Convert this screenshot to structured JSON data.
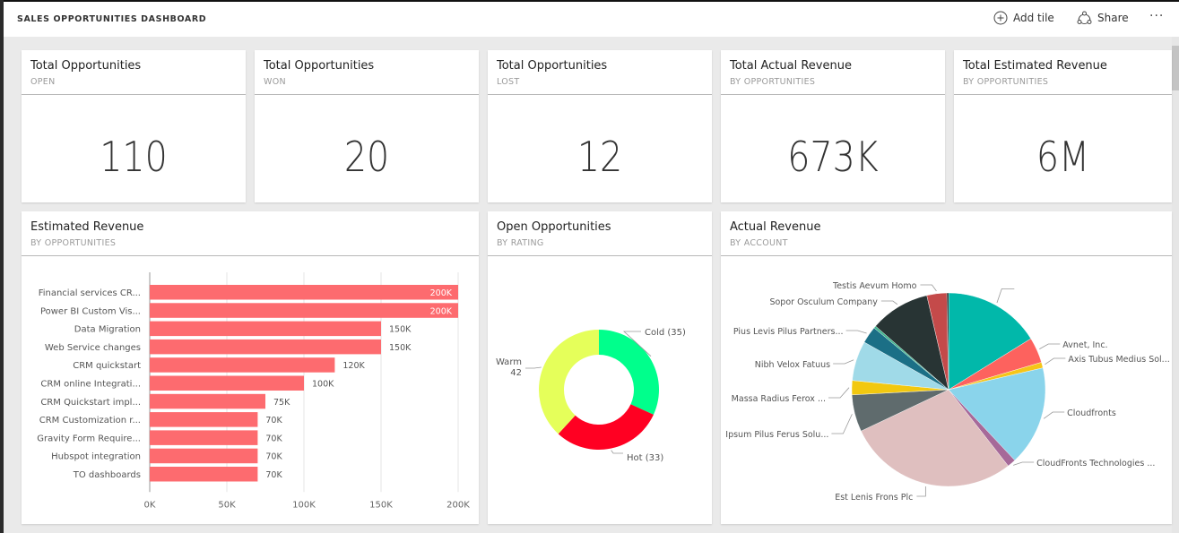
{
  "header": {
    "title": "SALES OPPORTUNITIES DASHBOARD",
    "add_tile_label": "Add tile",
    "share_label": "Share",
    "more_label": "···"
  },
  "kpis": [
    {
      "title": "Total Opportunities",
      "subtitle": "OPEN",
      "value": "110"
    },
    {
      "title": "Total Opportunities",
      "subtitle": "WON",
      "value": "20"
    },
    {
      "title": "Total Opportunities",
      "subtitle": "LOST",
      "value": "12"
    },
    {
      "title": "Total Actual Revenue",
      "subtitle": "BY OPPORTUNITIES",
      "value": "673K"
    },
    {
      "title": "Total Estimated Revenue",
      "subtitle": "BY OPPORTUNITIES",
      "value": "6M"
    }
  ],
  "tiles": {
    "bar": {
      "title": "Estimated Revenue",
      "subtitle": "BY OPPORTUNITIES"
    },
    "donut": {
      "title": "Open Opportunities",
      "subtitle": "BY RATING"
    },
    "pie": {
      "title": "Actual Revenue",
      "subtitle": "BY ACCOUNT"
    }
  },
  "chart_data": [
    {
      "type": "bar",
      "orientation": "horizontal",
      "title": "Estimated Revenue",
      "subtitle": "BY OPPORTUNITIES",
      "color": "#fd6b6f",
      "categories": [
        "Financial services CR...",
        "Power BI Custom Vis...",
        "Data Migration",
        "Web Service changes",
        "CRM quickstart",
        "CRM online Integrati...",
        "CRM Quickstart impl...",
        "CRM Customization r...",
        "Gravity Form Require...",
        "Hubspot integration",
        "TO dashboards"
      ],
      "values": [
        200000,
        200000,
        150000,
        150000,
        120000,
        100000,
        75000,
        70000,
        70000,
        70000,
        70000
      ],
      "data_labels": [
        "200K",
        "200K",
        "150K",
        "150K",
        "120K",
        "100K",
        "75K",
        "70K",
        "70K",
        "70K",
        "70K"
      ],
      "xlim": [
        0,
        200000
      ],
      "xticks": [
        0,
        50000,
        100000,
        150000,
        200000
      ],
      "xtick_labels": [
        "0K",
        "50K",
        "100K",
        "150K",
        "200K"
      ],
      "grid": true
    },
    {
      "type": "pie",
      "variant": "donut",
      "title": "Open Opportunities",
      "subtitle": "BY RATING",
      "slices": [
        {
          "label": "Cold",
          "value": 35,
          "display": "Cold (35)",
          "color": "#00ff8c"
        },
        {
          "label": "Hot",
          "value": 33,
          "display": "Hot (33)",
          "color": "#ff0022"
        },
        {
          "label": "Warm",
          "value": 42,
          "display": "Warm 42",
          "color": "#e5ff5a"
        }
      ]
    },
    {
      "type": "pie",
      "title": "Actual Revenue",
      "subtitle": "BY ACCOUNT",
      "slices": [
        {
          "label": "",
          "value": 17.0,
          "color": "#01b8aa"
        },
        {
          "label": "Avnet, Inc.",
          "value": 4.5,
          "color": "#fd625e"
        },
        {
          "label": "Axis Tubus Medius Sol...",
          "value": 1.0,
          "color": "#f5c518"
        },
        {
          "label": "Cloudfronts",
          "value": 17.5,
          "color": "#8ad4eb"
        },
        {
          "label": "CloudFronts Technologies ...",
          "value": 1.5,
          "color": "#a66999"
        },
        {
          "label": "Est Lenis Frons Plc",
          "value": 30.0,
          "color": "#dfbfbf"
        },
        {
          "label": "Ipsum Pilus Ferus Solu...",
          "value": 6.5,
          "color": "#5f6b6d"
        },
        {
          "label": "Massa Radius Ferox ...",
          "value": 2.5,
          "color": "#f2c80f"
        },
        {
          "label": "Nibh Velox Fatuus",
          "value": 7.0,
          "color": "#a0dae8"
        },
        {
          "label": "Pius Levis Pilus Partners...",
          "value": 3.0,
          "color": "#1b6f86"
        },
        {
          "label": "",
          "value": 0.4,
          "color": "#3cb48c"
        },
        {
          "label": "Sopor Osculum Company",
          "value": 10.5,
          "color": "#283434"
        },
        {
          "label": "Testis Aevum Homo",
          "value": 3.5,
          "color": "#c44a4a"
        },
        {
          "label": "",
          "value": 0.3,
          "color": "#111111"
        }
      ]
    }
  ]
}
